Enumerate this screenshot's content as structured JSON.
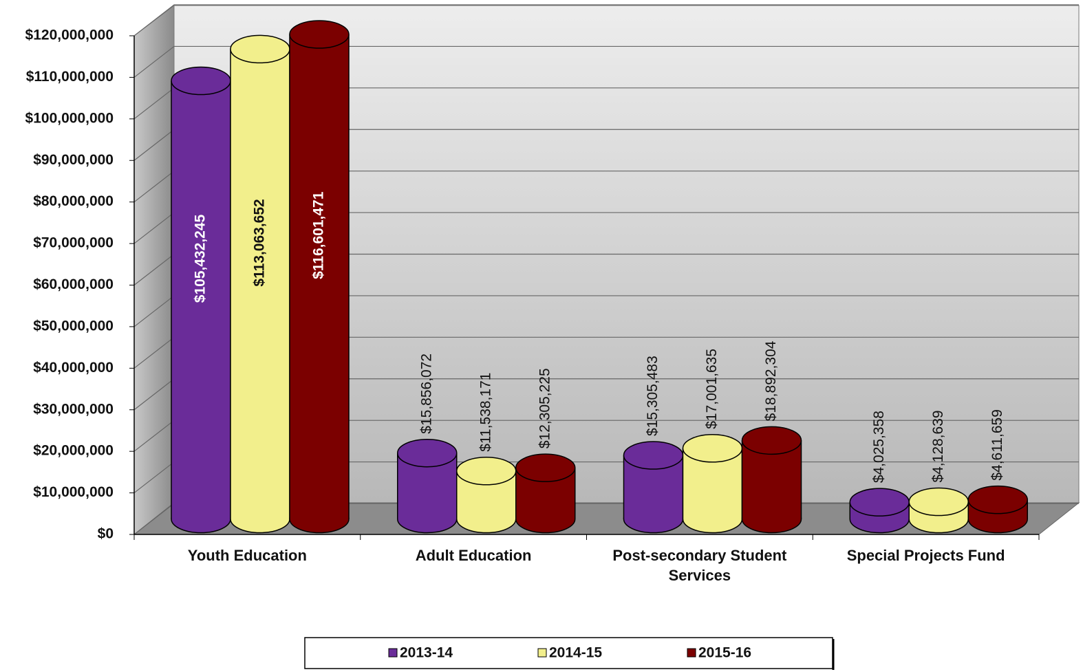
{
  "chart_data": {
    "type": "bar",
    "categories": [
      "Youth Education",
      "Adult Education",
      "Post-secondary Student Services",
      "Special Projects Fund"
    ],
    "series": [
      {
        "name": "2013-14",
        "color": "#6a2c99",
        "values": [
          105432245,
          15856072,
          15305483,
          4025358
        ],
        "value_labels": [
          "$105,432,245",
          "$15,856,072",
          "$15,305,483",
          "$4,025,358"
        ]
      },
      {
        "name": "2014-15",
        "color": "#f2ef8c",
        "values": [
          113063652,
          11538171,
          17001635,
          4128639
        ],
        "value_labels": [
          "$113,063,652",
          "$11,538,171",
          "$17,001,635",
          "$4,128,639"
        ]
      },
      {
        "name": "2015-16",
        "color": "#7b0000",
        "values": [
          116601471,
          12305225,
          18892304,
          4611659
        ],
        "value_labels": [
          "$116,601,471",
          "$12,305,225",
          "$18,892,304",
          "$4,611,659"
        ]
      }
    ],
    "ylim": [
      0,
      120000000
    ],
    "yticks": [
      {
        "value": 0,
        "label": "$0"
      },
      {
        "value": 10000000,
        "label": "$10,000,000"
      },
      {
        "value": 20000000,
        "label": "$20,000,000"
      },
      {
        "value": 30000000,
        "label": "$30,000,000"
      },
      {
        "value": 40000000,
        "label": "$40,000,000"
      },
      {
        "value": 50000000,
        "label": "$50,000,000"
      },
      {
        "value": 60000000,
        "label": "$60,000,000"
      },
      {
        "value": 70000000,
        "label": "$70,000,000"
      },
      {
        "value": 80000000,
        "label": "$80,000,000"
      },
      {
        "value": 90000000,
        "label": "$90,000,000"
      },
      {
        "value": 100000000,
        "label": "$100,000,000"
      },
      {
        "value": 110000000,
        "label": "$110,000,000"
      },
      {
        "value": 120000000,
        "label": "$120,000,000"
      }
    ],
    "grid": true,
    "legend": "bottom"
  }
}
